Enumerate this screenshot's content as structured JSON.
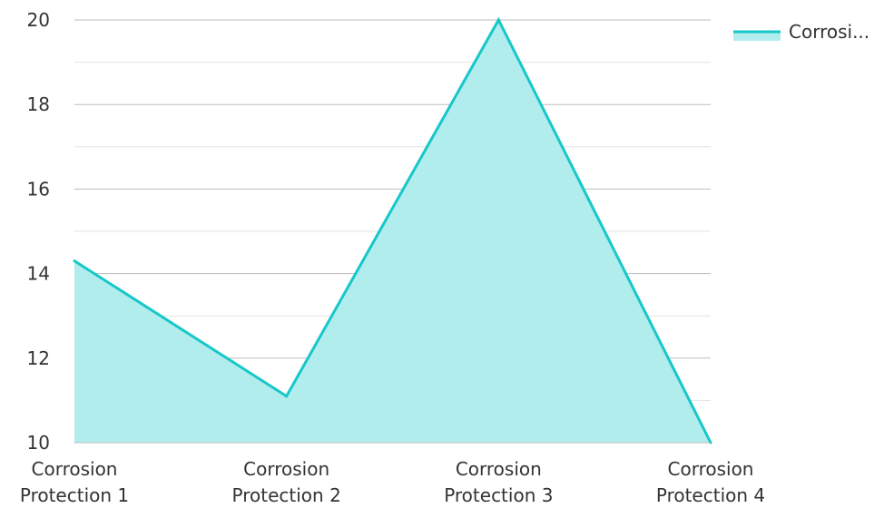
{
  "chart_data": {
    "type": "area",
    "categories": [
      [
        "Corrosion",
        "Protection 1"
      ],
      [
        "Corrosion",
        "Protection 2"
      ],
      [
        "Corrosion",
        "Protection 3"
      ],
      [
        "Corrosion",
        "Protection 4"
      ]
    ],
    "series": [
      {
        "name": "Corrosi...",
        "values": [
          14.3,
          11.1,
          20,
          10
        ]
      }
    ],
    "ylim": [
      10,
      20
    ],
    "y_ticks": [
      10,
      12,
      14,
      16,
      18,
      20
    ],
    "grid": true,
    "legend_position": "top-right",
    "colors": {
      "line": "#17c7c9",
      "fill": "#b2eded",
      "grid_major": "#bdbdbd",
      "grid_minor": "#e3e3e3"
    }
  }
}
